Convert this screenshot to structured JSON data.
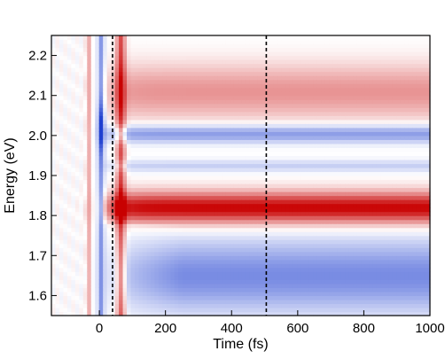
{
  "chart_data": {
    "type": "heatmap",
    "title": "",
    "xlabel": "Time (fs)",
    "ylabel": "Energy (eV)",
    "xlim": [
      -145,
      1000
    ],
    "ylim": [
      1.55,
      2.25
    ],
    "x_ticks": [
      0,
      200,
      400,
      600,
      800,
      1000
    ],
    "y_ticks": [
      1.6,
      1.7,
      1.8,
      1.9,
      2.0,
      2.1,
      2.2
    ],
    "x_tick_labels": [
      "0",
      "200",
      "400",
      "600",
      "800",
      "1000"
    ],
    "y_tick_labels": [
      "1.6",
      "1.7",
      "1.8",
      "1.9",
      "2.0",
      "2.1",
      "2.2"
    ],
    "colormap": {
      "negative": "#1f3fd0",
      "zero": "#ffffff",
      "positive": "#c80000"
    },
    "value_range": [
      -1,
      1
    ],
    "vertical_markers_fs": [
      40,
      505
    ],
    "marker_style": "black dashed",
    "spectral_bands": [
      {
        "energy_eV": 2.11,
        "width_eV": 0.07,
        "amplitude": 0.42
      },
      {
        "energy_eV": 2.005,
        "width_eV": 0.022,
        "amplitude": -0.55
      },
      {
        "energy_eV": 1.925,
        "width_eV": 0.015,
        "amplitude": -0.25
      },
      {
        "energy_eV": 1.82,
        "width_eV": 0.04,
        "amplitude": 1.0
      },
      {
        "energy_eV": 1.65,
        "width_eV": 0.09,
        "amplitude": -0.6
      }
    ],
    "grid": false,
    "legend": "none"
  }
}
